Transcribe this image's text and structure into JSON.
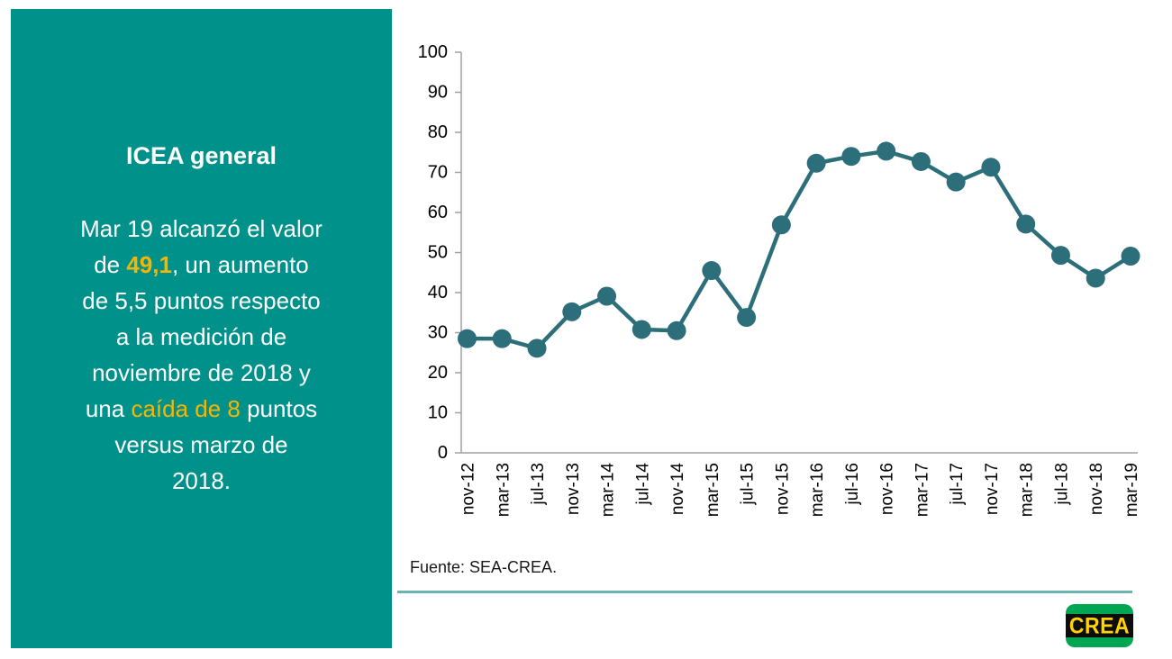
{
  "panel": {
    "bg_color": "#00918B",
    "title": "ICEA general",
    "body": {
      "part1": "Mar 19 alcanzó el valor\nde ",
      "highlight1": "49,1",
      "part2": ", un aumento\nde 5,5 puntos respecto\na la medición de\nnoviembre de 2018 y\nuna ",
      "highlight2": "caída de 8",
      "part3": " puntos\nversus marzo de\n2018.",
      "highlight_color": "#F8B500"
    }
  },
  "chart_data": {
    "type": "line",
    "title": "",
    "xlabel": "",
    "ylabel": "",
    "categories": [
      "nov-12",
      "mar-13",
      "jul-13",
      "nov-13",
      "mar-14",
      "jul-14",
      "nov-14",
      "mar-15",
      "jul-15",
      "nov-15",
      "mar-16",
      "jul-16",
      "nov-16",
      "mar-17",
      "jul-17",
      "nov-17",
      "mar-18",
      "jul-18",
      "nov-18",
      "mar-19"
    ],
    "values": [
      28.5,
      28.5,
      26.1,
      35.2,
      39.1,
      30.8,
      30.5,
      45.5,
      33.8,
      56.9,
      72.3,
      74.0,
      75.3,
      72.7,
      67.6,
      71.3,
      57.1,
      49.3,
      43.6,
      49.1
    ],
    "ylim": [
      0,
      100
    ],
    "ytick_step": 10,
    "grid": false,
    "legend": "none",
    "line_color": "#2C6E79",
    "marker": "circle",
    "axis_color": "#A0A0A0",
    "tick_label_color": "#000000"
  },
  "footer": {
    "source_text": "Fuente: SEA-CREA.",
    "divider_color": "#6BB5B1",
    "logo": {
      "text": "CREA",
      "bg_color": "#00A651",
      "band_color": "#0d0d0d",
      "text_color": "#FFD400"
    }
  }
}
